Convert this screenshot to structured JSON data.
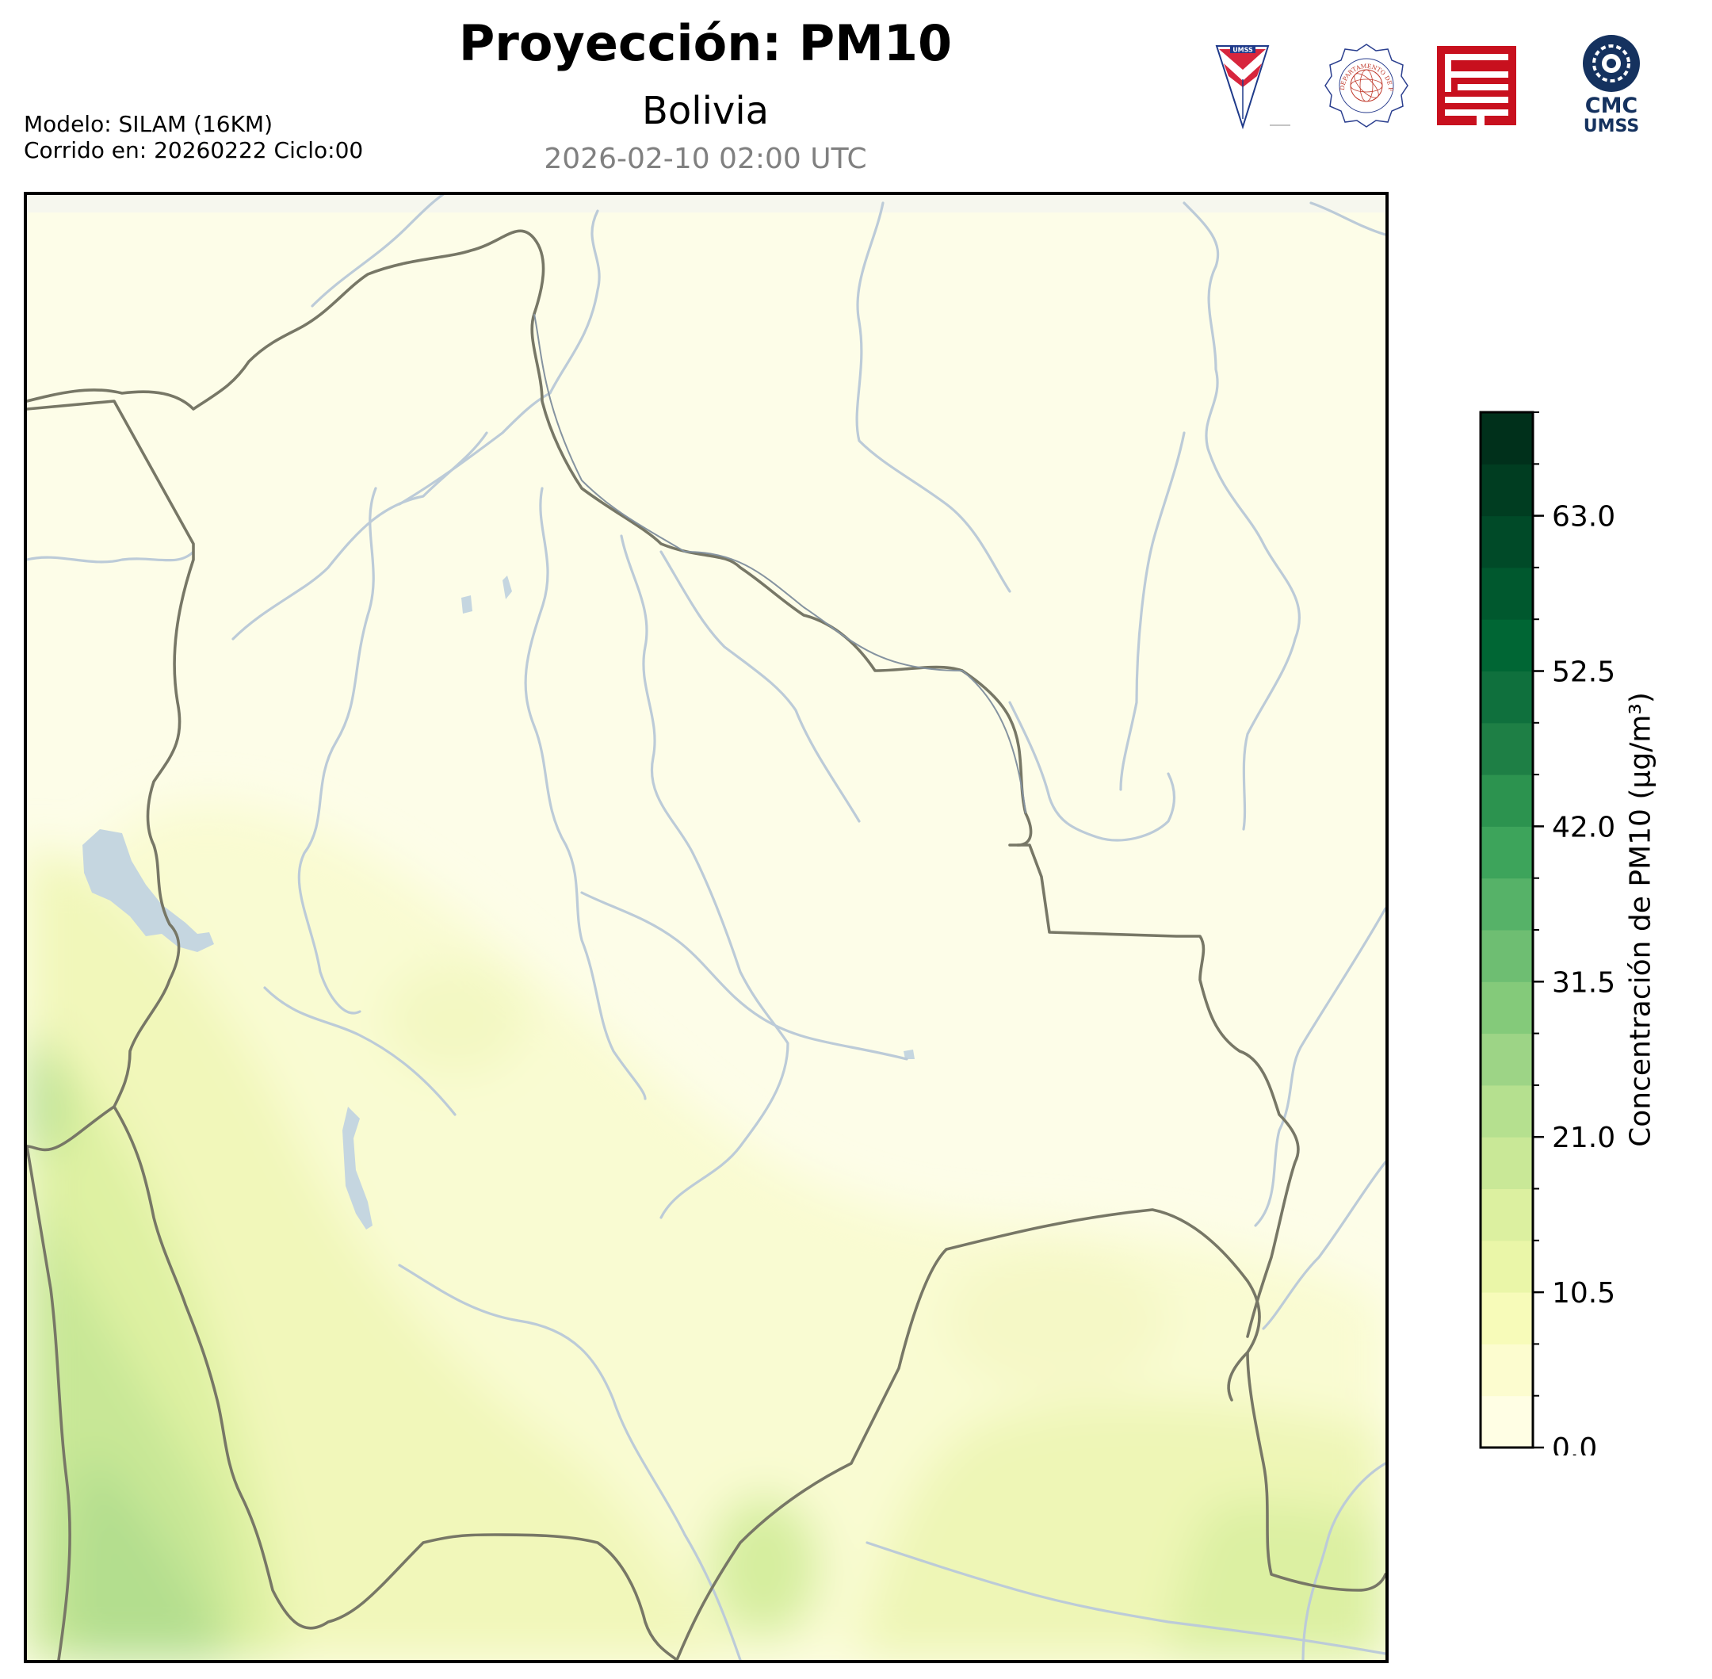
{
  "header": {
    "title": "Proyección: PM10",
    "region": "Bolivia",
    "datetime": "2026-02-10 02:00 UTC"
  },
  "meta": {
    "model": "Modelo: SILAM (16KM)",
    "run": "Corrido en: 20260222 Ciclo:00"
  },
  "logos": [
    {
      "name": "umss-shield-logo",
      "text": "UMSS"
    },
    {
      "name": "departamento-fisica-seal-logo",
      "text": "DEPARTAMENTO DE FÍSICA"
    },
    {
      "name": "red-maze-logo",
      "text": ""
    },
    {
      "name": "cmc-umss-logo",
      "text": "CMC UMSS"
    }
  ],
  "colorbar": {
    "label": "Concentración de PM10 (μg/m³)",
    "ticks": [
      "0.0",
      "10.5",
      "21.0",
      "31.5",
      "42.0",
      "52.5",
      "63.0"
    ],
    "tick_values": [
      0.0,
      10.5,
      21.0,
      31.5,
      42.0,
      52.5,
      63.0
    ],
    "min": 0.0,
    "max": 70.0,
    "step": 3.5,
    "colors": [
      "#fffee4",
      "#fcfccf",
      "#f7fbb9",
      "#eaf6a8",
      "#dcf0a0",
      "#c9e897",
      "#b5e08f",
      "#9dd486",
      "#84ca7a",
      "#6ebe72",
      "#56b268",
      "#3da45b",
      "#2c934f",
      "#1e7f45",
      "#0f703d",
      "#006634",
      "#00582e",
      "#004a28",
      "#003d21",
      "#00301b"
    ]
  },
  "map": {
    "field": "PM10",
    "water_color": "#c5d6e0",
    "river_color": "#bcccd8",
    "border_color": "#777766",
    "base_color": "#fdfde8"
  }
}
